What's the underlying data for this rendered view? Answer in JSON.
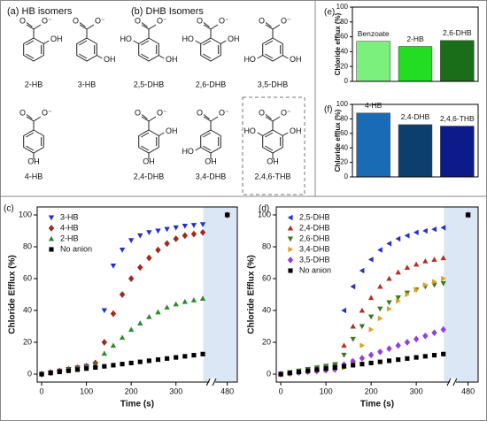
{
  "structures": {
    "titles": [
      "(a) HB isomers",
      "(b) DHB Isomers"
    ],
    "carboxylate": [
      "O",
      "O⁻"
    ],
    "molecules": [
      {
        "name": "2-HB",
        "groups": [
          "OH"
        ]
      },
      {
        "name": "3-HB",
        "groups": [
          "OH"
        ]
      },
      {
        "name": "2,5-DHB",
        "groups": [
          "HO",
          "OH"
        ]
      },
      {
        "name": "2,6-DHB",
        "groups": [
          "HO",
          "OH"
        ]
      },
      {
        "name": "3,5-DHB",
        "groups": [
          "HO",
          "OH"
        ]
      },
      {
        "name": "4-HB",
        "groups": [
          "OH"
        ]
      },
      {
        "name": "2,4-DHB",
        "groups": [
          "OH",
          "OH"
        ]
      },
      {
        "name": "3,4-DHB",
        "groups": [
          "HO",
          "OH"
        ]
      },
      {
        "name": "2,4,6-THB",
        "groups": [
          "HO",
          "OH",
          "OH"
        ]
      }
    ]
  },
  "chart_data": [
    {
      "type": "scatter",
      "panel": "(c)",
      "xlabel": "Time (s)",
      "ylabel": "Chloride Efflux (%)",
      "x": [
        0,
        20,
        40,
        60,
        80,
        100,
        120,
        140,
        160,
        180,
        200,
        220,
        240,
        260,
        280,
        300,
        320,
        340,
        360,
        480
      ],
      "xlim": [
        -10,
        490
      ],
      "axis_break": [
        370,
        470
      ],
      "xticks": [
        0,
        100,
        200,
        300,
        480
      ],
      "ylim": [
        -5,
        105
      ],
      "yticks": [
        0,
        20,
        40,
        60,
        80,
        100
      ],
      "series": [
        {
          "name": "3-HB",
          "color": "#2430d0",
          "marker": "triangle-down",
          "values": [
            0,
            1,
            2,
            3,
            4,
            5,
            6,
            40,
            68,
            78,
            84,
            87,
            89,
            90,
            91,
            92,
            93,
            93.5,
            94,
            100
          ]
        },
        {
          "name": "4-HB",
          "color": "#a3281c",
          "marker": "diamond",
          "values": [
            0,
            1,
            2,
            3,
            4,
            5,
            7,
            20,
            38,
            50,
            60,
            67,
            73,
            78,
            82,
            85,
            87,
            88,
            89,
            100
          ]
        },
        {
          "name": "2-HB",
          "color": "#2e8b2e",
          "marker": "triangle-up",
          "values": [
            0,
            1,
            2,
            3,
            4,
            5,
            6,
            13,
            18,
            23,
            28,
            32,
            36,
            39,
            42,
            44,
            45.5,
            46.5,
            47.5,
            100
          ]
        },
        {
          "name": "No anion",
          "color": "#000000",
          "marker": "square",
          "values": [
            0,
            0.7,
            1.4,
            2.1,
            2.8,
            3.5,
            4.2,
            4.9,
            5.6,
            6.3,
            7,
            7.7,
            8.4,
            9.1,
            9.8,
            10.5,
            11.2,
            11.9,
            12.6,
            100
          ]
        }
      ]
    },
    {
      "type": "scatter",
      "panel": "(d)",
      "xlabel": "Time (s)",
      "ylabel": "Chloride Efflux (%)",
      "x": [
        0,
        20,
        40,
        60,
        80,
        100,
        120,
        140,
        160,
        180,
        200,
        220,
        240,
        260,
        280,
        300,
        320,
        340,
        360,
        480
      ],
      "xlim": [
        -10,
        490
      ],
      "axis_break": [
        370,
        470
      ],
      "xticks": [
        0,
        100,
        200,
        300,
        480
      ],
      "ylim": [
        -5,
        105
      ],
      "yticks": [
        0,
        20,
        40,
        60,
        80,
        100
      ],
      "series": [
        {
          "name": "2,5-DHB",
          "color": "#2430d0",
          "marker": "triangle-left",
          "values": [
            0,
            1,
            2,
            3,
            4,
            5,
            6,
            40,
            55,
            65,
            72,
            78,
            82,
            85,
            87,
            89,
            90,
            91,
            92,
            100
          ]
        },
        {
          "name": "2,4-DHB",
          "color": "#b5301e",
          "marker": "triangle-up",
          "values": [
            0,
            1,
            2,
            3,
            4,
            5,
            6,
            18,
            30,
            40,
            48,
            55,
            60,
            64,
            67,
            69,
            71,
            72,
            73,
            100
          ]
        },
        {
          "name": "2,6-DHB",
          "color": "#3a7a1e",
          "marker": "triangle-down",
          "values": [
            0,
            1,
            2,
            3,
            4,
            5,
            6,
            12,
            22,
            30,
            36,
            41,
            45,
            48,
            51,
            53,
            55,
            56,
            57,
            100
          ]
        },
        {
          "name": "3,4-DHB",
          "color": "#e0a020",
          "marker": "triangle-right",
          "values": [
            0,
            0.5,
            1,
            1.5,
            2,
            2.5,
            3,
            4,
            8,
            18,
            28,
            35,
            41,
            46,
            50,
            53,
            56,
            58,
            60,
            100
          ]
        },
        {
          "name": "3,5-DHB",
          "color": "#9040e0",
          "marker": "diamond",
          "values": [
            0,
            0.5,
            1,
            1.5,
            2,
            2.5,
            3,
            6,
            8,
            10,
            12,
            14,
            16,
            18,
            20,
            22,
            24,
            26,
            28,
            100
          ]
        },
        {
          "name": "No anion",
          "color": "#000000",
          "marker": "square",
          "values": [
            0,
            0.7,
            1.4,
            2.1,
            2.8,
            3.5,
            4.2,
            4.9,
            5.6,
            6.3,
            7,
            7.7,
            8.4,
            9.1,
            9.8,
            10.5,
            11.2,
            11.9,
            12.6,
            100
          ]
        }
      ]
    },
    {
      "type": "bar",
      "panel": "(e)",
      "ylabel": "Chloride efflux (%)",
      "categories": [
        "Benzoate",
        "2-HB",
        "2,6-DHB"
      ],
      "values": [
        54,
        47,
        55
      ],
      "colors": [
        "#7cf07c",
        "#22dd22",
        "#1a6e1a"
      ],
      "ylim": [
        0,
        100
      ],
      "yticks": [
        0,
        20,
        40,
        60,
        80,
        100
      ]
    },
    {
      "type": "bar",
      "panel": "(f)",
      "ylabel": "Chloride efflux (%)",
      "categories": [
        "4-HB",
        "2,4-DHB",
        "2,4,6-THB"
      ],
      "values": [
        88,
        72,
        70
      ],
      "colors": [
        "#1a6bb5",
        "#0d3f6e",
        "#0d1a8a"
      ],
      "ylim": [
        0,
        100
      ],
      "yticks": [
        0,
        20,
        40,
        60,
        80,
        100
      ]
    }
  ]
}
